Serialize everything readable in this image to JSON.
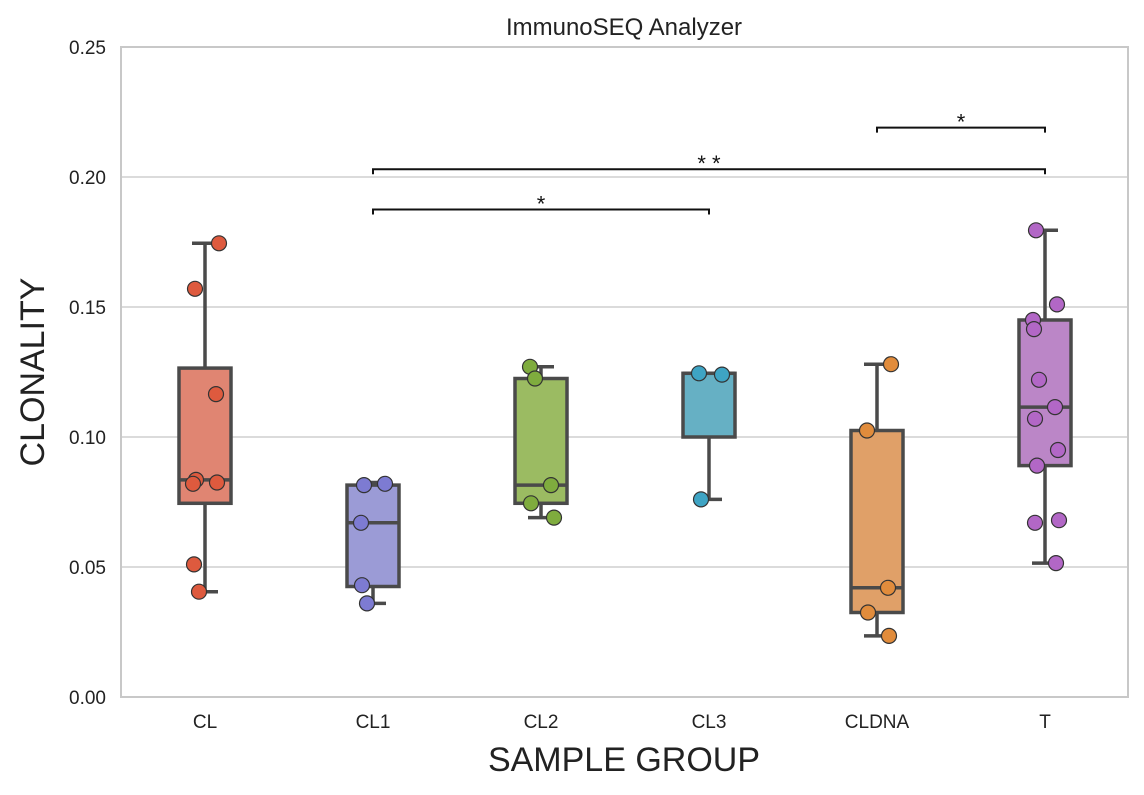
{
  "chart_data": {
    "type": "box",
    "title": "ImmunoSEQ Analyzer",
    "xlabel": "SAMPLE GROUP",
    "ylabel": "CLONALITY",
    "ylim": [
      0,
      0.25
    ],
    "yticks": [
      0.0,
      0.05,
      0.1,
      0.15,
      0.2,
      0.25
    ],
    "ytick_labels": [
      "0.00",
      "0.05",
      "0.10",
      "0.15",
      "0.20",
      "0.25"
    ],
    "grid": true,
    "categories": [
      "CL",
      "CL1",
      "CL2",
      "CL3",
      "CLDNA",
      "T"
    ],
    "colors": [
      "#e08572",
      "#9b9bd6",
      "#9bbb62",
      "#66b0c4",
      "#e0a068",
      "#bb86c7"
    ],
    "point_colors": [
      "#de5a3e",
      "#7d7bd2",
      "#7fac3e",
      "#3ea4c4",
      "#e18c3c",
      "#b267c6"
    ],
    "boxes": [
      {
        "name": "CL",
        "whisker_low": 0.0405,
        "q1": 0.0745,
        "median": 0.0835,
        "q3": 0.1265,
        "whisker_high": 0.1745,
        "points": [
          0.1745,
          0.157,
          0.1165,
          0.0835,
          0.0825,
          0.082,
          0.051,
          0.0405
        ]
      },
      {
        "name": "CL1",
        "whisker_low": 0.036,
        "q1": 0.0425,
        "median": 0.067,
        "q3": 0.0815,
        "whisker_high": 0.0825,
        "points": [
          0.0815,
          0.082,
          0.067,
          0.043,
          0.036
        ]
      },
      {
        "name": "CL2",
        "whisker_low": 0.069,
        "q1": 0.0745,
        "median": 0.0815,
        "q3": 0.1225,
        "whisker_high": 0.127,
        "points": [
          0.127,
          0.1225,
          0.0815,
          0.0745,
          0.069
        ]
      },
      {
        "name": "CL3",
        "whisker_low": 0.076,
        "q1": 0.1,
        "median": 0.1245,
        "q3": 0.1245,
        "whisker_high": 0.1245,
        "points": [
          0.1245,
          0.124,
          0.076
        ]
      },
      {
        "name": "CLDNA",
        "whisker_low": 0.0235,
        "q1": 0.0325,
        "median": 0.042,
        "q3": 0.1025,
        "whisker_high": 0.128,
        "points": [
          0.128,
          0.1025,
          0.042,
          0.0325,
          0.0235
        ]
      },
      {
        "name": "T",
        "whisker_low": 0.0515,
        "q1": 0.089,
        "median": 0.1115,
        "q3": 0.145,
        "whisker_high": 0.1795,
        "points": [
          0.1795,
          0.151,
          0.145,
          0.1415,
          0.122,
          0.1115,
          0.107,
          0.095,
          0.089,
          0.068,
          0.067,
          0.0515
        ]
      }
    ],
    "significance": [
      {
        "from": "CL1",
        "to": "CL3",
        "y": 0.1875,
        "label": "*"
      },
      {
        "from": "CL1",
        "to": "T",
        "y": 0.203,
        "label": "* *"
      },
      {
        "from": "CLDNA",
        "to": "T",
        "y": 0.219,
        "label": "*"
      }
    ]
  }
}
